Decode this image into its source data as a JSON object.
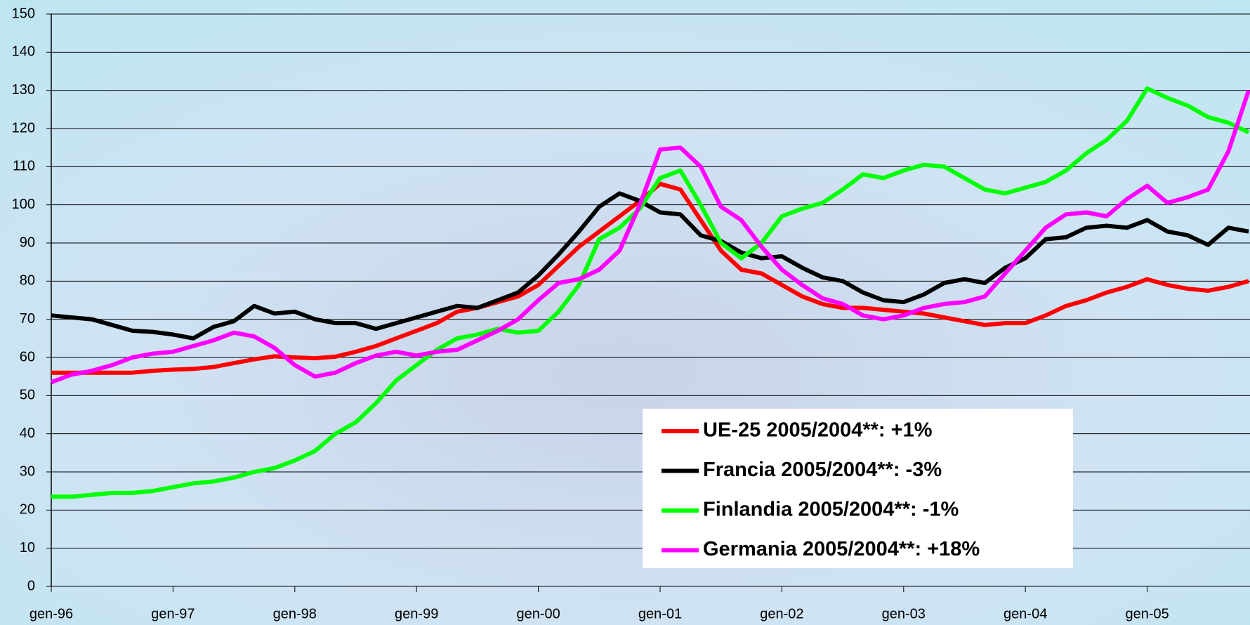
{
  "chart_data": {
    "type": "line",
    "categories": [
      "gen-96",
      null,
      null,
      null,
      null,
      null,
      "gen-97",
      null,
      null,
      null,
      null,
      null,
      "gen-98",
      null,
      null,
      null,
      null,
      null,
      "gen-99",
      null,
      null,
      null,
      null,
      null,
      "gen-00",
      null,
      null,
      null,
      null,
      null,
      "gen-01",
      null,
      null,
      null,
      null,
      null,
      "gen-02",
      null,
      null,
      null,
      null,
      null,
      "gen-03",
      null,
      null,
      null,
      null,
      null,
      "gen-04",
      null,
      null,
      null,
      null,
      null,
      "gen-05",
      null,
      null,
      null,
      null,
      null
    ],
    "series": [
      {
        "name": "UE-25 2005/2004**: +1%",
        "color": "#ff0000",
        "values": [
          56,
          56,
          56,
          56,
          56,
          56.5,
          56.8,
          57,
          57.5,
          58.5,
          59.5,
          60.3,
          60,
          59.8,
          60.2,
          61.5,
          63,
          65,
          67,
          69,
          72,
          73,
          74.5,
          76,
          79,
          84,
          89,
          93,
          97,
          101,
          105.5,
          104,
          96,
          88,
          83,
          82,
          79,
          76,
          74,
          73,
          73,
          72.5,
          72,
          71.5,
          70.5,
          69.5,
          68.5,
          69,
          69,
          71,
          73.5,
          75,
          77,
          78.5,
          80.5,
          79,
          78,
          77.5,
          78.5,
          80
        ]
      },
      {
        "name": "Francia 2005/2004**: -3%",
        "color": "#000000",
        "values": [
          71,
          70.5,
          70,
          68.5,
          67,
          66.7,
          66,
          65,
          68,
          69.5,
          73.5,
          71.5,
          72,
          70,
          69,
          69,
          67.5,
          69,
          70.5,
          72,
          73.5,
          73,
          75,
          77,
          81.5,
          87,
          93,
          99.5,
          103,
          101,
          98,
          97.5,
          92,
          90.5,
          87.5,
          86,
          86.5,
          83.5,
          81,
          80,
          77,
          75,
          74.5,
          76.5,
          79.5,
          80.5,
          79.5,
          83.5,
          86,
          91,
          91.5,
          94,
          94.5,
          94,
          96,
          93,
          92,
          89.5,
          94,
          93
        ]
      },
      {
        "name": "Finlandia 2005/2004**: -1%",
        "color": "#00ff00",
        "values": [
          23.5,
          23.5,
          24,
          24.5,
          24.5,
          25,
          26,
          27,
          27.5,
          28.5,
          30,
          31,
          33,
          35.5,
          40,
          43,
          48,
          54,
          58,
          62,
          65,
          66,
          67.5,
          66.5,
          67,
          72,
          79,
          91,
          94,
          99,
          107,
          109,
          100,
          90,
          86,
          90,
          97,
          99,
          100.5,
          104,
          108,
          107,
          109,
          110.5,
          110,
          107,
          104,
          103,
          104.5,
          106,
          109,
          113.5,
          117,
          122,
          130.5,
          128,
          126,
          123,
          121.5,
          119
        ]
      },
      {
        "name": "Germania 2005/2004**: +18%",
        "color": "#ff00ff",
        "values": [
          53.5,
          55.5,
          56.5,
          58,
          60,
          61,
          61.5,
          63,
          64.5,
          66.5,
          65.5,
          62.5,
          58,
          55,
          56,
          58.5,
          60.5,
          61.5,
          60.5,
          61.5,
          62,
          64.5,
          67,
          70,
          75,
          79.5,
          80.5,
          83,
          88,
          100,
          114.5,
          115,
          110,
          99.5,
          96,
          89,
          83,
          79,
          75.5,
          74,
          71,
          70,
          71,
          73,
          74,
          74.5,
          76,
          82,
          88,
          94,
          97.5,
          98,
          97,
          101.5,
          105,
          100.5,
          102,
          104,
          114,
          130
        ]
      }
    ],
    "ylim": [
      0,
      150
    ],
    "yticks": [
      0,
      10,
      20,
      30,
      40,
      50,
      60,
      70,
      80,
      90,
      100,
      110,
      120,
      130,
      140,
      150
    ],
    "grid": true
  }
}
